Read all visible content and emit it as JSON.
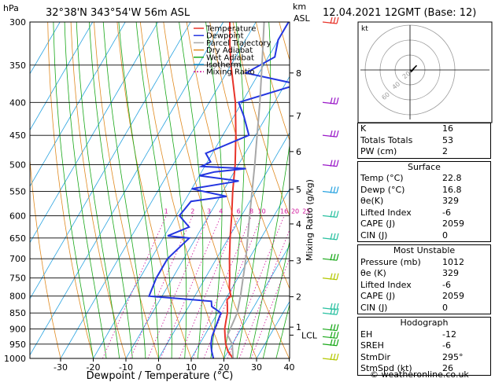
{
  "header": {
    "pressure_unit": "hPa",
    "location": "32°38'N  343°54'W  56m  ASL",
    "km_label": "km",
    "asl_label": "ASL",
    "datetime": "12.04.2021  12GMT  (Base: 12)"
  },
  "footer": {
    "credit": "© weatheronline.co.uk"
  },
  "hodograph": {
    "label": "kt",
    "ring_labels": [
      "20",
      "40",
      "60"
    ]
  },
  "stats": {
    "indices": [
      {
        "label": "K",
        "value": "16"
      },
      {
        "label": "Totals Totals",
        "value": "53"
      },
      {
        "label": "PW (cm)",
        "value": "2"
      }
    ],
    "surface": {
      "title": "Surface",
      "rows": [
        {
          "label": "Temp (°C)",
          "value": "22.8"
        },
        {
          "label": "Dewp (°C)",
          "value": "16.8"
        },
        {
          "label": "θe(K)",
          "value": "329"
        },
        {
          "label": "Lifted Index",
          "value": "-6"
        },
        {
          "label": "CAPE (J)",
          "value": "2059"
        },
        {
          "label": "CIN (J)",
          "value": "0"
        }
      ]
    },
    "most_unstable": {
      "title": "Most Unstable",
      "rows": [
        {
          "label": "Pressure (mb)",
          "value": "1012"
        },
        {
          "label": "θe (K)",
          "value": "329"
        },
        {
          "label": "Lifted Index",
          "value": "-6"
        },
        {
          "label": "CAPE (J)",
          "value": "2059"
        },
        {
          "label": "CIN (J)",
          "value": "0"
        }
      ]
    },
    "hodograph": {
      "title": "Hodograph",
      "rows": [
        {
          "label": "EH",
          "value": "-12"
        },
        {
          "label": "SREH",
          "value": "-6"
        },
        {
          "label": "StmDir",
          "value": "295°"
        },
        {
          "label": "StmSpd (kt)",
          "value": "26"
        }
      ]
    }
  },
  "colors": {
    "temperature": "#e8342a",
    "dewpoint": "#2436e0",
    "parcel": "#a8a8a8",
    "dry_adiabat": "#e08a20",
    "wet_adiabat": "#18a818",
    "isotherm": "#29a3e0",
    "mixing_ratio": "#d0109a"
  },
  "chart_data": {
    "type": "line",
    "xlabel": "Dewpoint / Temperature (°C)",
    "ylabel": "hPa",
    "right_axis_label": "Mixing Ratio (g/kg)",
    "xlim": [
      -35,
      40
    ],
    "ylim": [
      1000,
      300
    ],
    "x_ticks": [
      -30,
      -20,
      -10,
      0,
      10,
      20,
      30,
      40
    ],
    "pressure_levels": [
      300,
      350,
      400,
      450,
      500,
      550,
      600,
      650,
      700,
      750,
      800,
      850,
      900,
      950,
      1000
    ],
    "km_ticks": [
      {
        "km": "8",
        "p": 360
      },
      {
        "km": "7",
        "p": 420
      },
      {
        "km": "6",
        "p": 477
      },
      {
        "km": "5",
        "p": 546
      },
      {
        "km": "4",
        "p": 618
      },
      {
        "km": "3",
        "p": 705
      },
      {
        "km": "2",
        "p": 802
      },
      {
        "km": "1",
        "p": 894
      },
      {
        "km": "LCL",
        "p": 920
      }
    ],
    "mixing_ratio_labels": [
      "1",
      "2",
      "3",
      "4",
      "6",
      "8",
      "10",
      "16",
      "20",
      "25"
    ],
    "mixing_ratio_values": [
      1,
      2,
      3,
      4,
      6,
      8,
      10,
      16,
      20,
      25
    ],
    "legend": [
      "Temperature",
      "Dewpoint",
      "Parcel Trajectory",
      "Dry Adiabat",
      "Wet Adiabat",
      "Isotherm",
      "Mixing Ratio"
    ],
    "legend_position": "top-right",
    "series": [
      {
        "name": "Temperature",
        "points": [
          [
            1000,
            22.8
          ],
          [
            975,
            20
          ],
          [
            950,
            18
          ],
          [
            925,
            16.5
          ],
          [
            900,
            15
          ],
          [
            875,
            14
          ],
          [
            850,
            13
          ],
          [
            825,
            11.5
          ],
          [
            810,
            10.5
          ],
          [
            800,
            11
          ],
          [
            775,
            9
          ],
          [
            750,
            7.5
          ],
          [
            700,
            4
          ],
          [
            650,
            0.5
          ],
          [
            600,
            -3
          ],
          [
            550,
            -7
          ],
          [
            500,
            -11
          ],
          [
            450,
            -16
          ],
          [
            400,
            -22
          ],
          [
            350,
            -30
          ],
          [
            325,
            -34
          ],
          [
            300,
            -38
          ]
        ]
      },
      {
        "name": "Dewpoint",
        "points": [
          [
            1000,
            16.8
          ],
          [
            975,
            15
          ],
          [
            950,
            13.5
          ],
          [
            925,
            12.5
          ],
          [
            900,
            12
          ],
          [
            850,
            11
          ],
          [
            830,
            7
          ],
          [
            815,
            6
          ],
          [
            800,
            -14
          ],
          [
            750,
            -15
          ],
          [
            700,
            -15
          ],
          [
            650,
            -12
          ],
          [
            645,
            -19
          ],
          [
            625,
            -14
          ],
          [
            600,
            -19
          ],
          [
            570,
            -18
          ],
          [
            560,
            -8
          ],
          [
            545,
            -20
          ],
          [
            530,
            -7
          ],
          [
            520,
            -20
          ],
          [
            513,
            -16
          ],
          [
            507,
            -7
          ],
          [
            503,
            -21
          ],
          [
            495,
            -19
          ],
          [
            480,
            -22
          ],
          [
            450,
            -12
          ],
          [
            420,
            -17
          ],
          [
            400,
            -21
          ],
          [
            375,
            -6
          ],
          [
            360,
            -24
          ],
          [
            340,
            -18
          ],
          [
            320,
            -20
          ],
          [
            300,
            -20
          ]
        ]
      },
      {
        "name": "Parcel Trajectory",
        "points": [
          [
            1000,
            22.8
          ],
          [
            950,
            20
          ],
          [
            920,
            17
          ],
          [
            850,
            16
          ],
          [
            800,
            14
          ],
          [
            700,
            9
          ],
          [
            600,
            2.5
          ],
          [
            500,
            -5
          ],
          [
            450,
            -9.5
          ],
          [
            400,
            -14.5
          ],
          [
            350,
            -20.5
          ],
          [
            300,
            -27.5
          ]
        ]
      }
    ],
    "wind_barbs": [
      {
        "p": 1000,
        "color": "#b4c800"
      },
      {
        "p": 950,
        "color": "#18a818"
      },
      {
        "p": 925,
        "color": "#18a818"
      },
      {
        "p": 900,
        "color": "#18a818"
      },
      {
        "p": 850,
        "color": "#28c0a0"
      },
      {
        "p": 835,
        "color": "#28c0a0"
      },
      {
        "p": 750,
        "color": "#b4c800"
      },
      {
        "p": 700,
        "color": "#18a818"
      },
      {
        "p": 650,
        "color": "#28c0a0"
      },
      {
        "p": 600,
        "color": "#28c0a0"
      },
      {
        "p": 550,
        "color": "#29a3e0"
      },
      {
        "p": 500,
        "color": "#9a18c8"
      },
      {
        "p": 450,
        "color": "#9a18c8"
      },
      {
        "p": 400,
        "color": "#9a18c8"
      },
      {
        "p": 300,
        "color": "#e8342a"
      }
    ],
    "hodograph_points": [
      [
        0,
        0
      ],
      [
        3,
        -1
      ],
      [
        6,
        3
      ],
      [
        9,
        6
      ],
      [
        4,
        1
      ],
      [
        1,
        -3
      ]
    ]
  }
}
